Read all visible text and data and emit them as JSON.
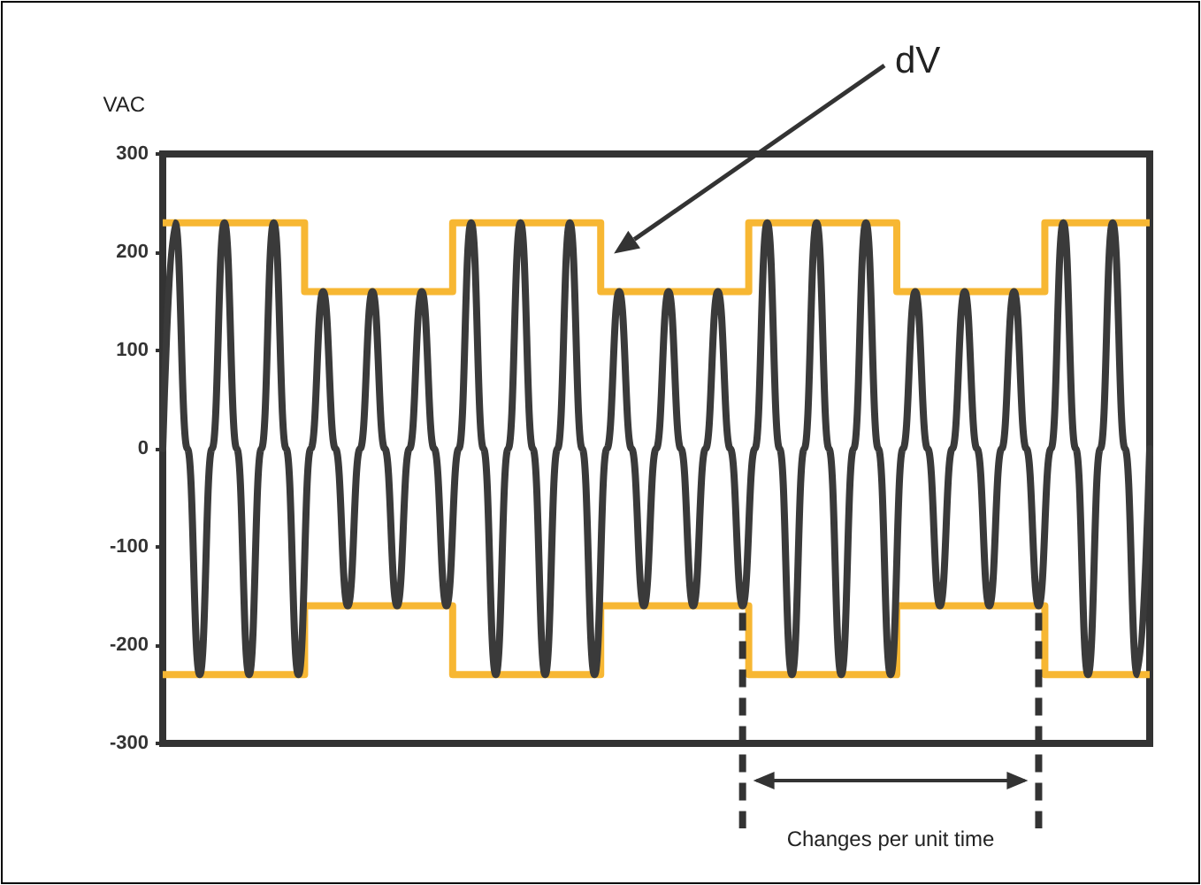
{
  "chart_data": {
    "type": "line",
    "ylabel": "VAC",
    "ylim": [
      -300,
      300
    ],
    "yticks": [
      -300,
      -200,
      -100,
      0,
      100,
      200,
      300
    ],
    "grid": false,
    "marker": "none",
    "annotations": [
      "dV",
      "Changes per unit time"
    ],
    "categories": [
      null,
      null,
      null,
      null,
      null,
      null,
      null,
      null,
      null,
      null,
      null,
      null,
      null,
      null,
      null,
      null,
      null,
      null,
      null,
      null,
      null,
      null,
      null,
      null,
      null,
      null,
      null,
      null,
      null,
      null,
      null,
      null,
      null,
      null,
      null,
      null,
      null,
      null,
      null,
      null,
      null,
      null,
      null,
      null,
      null,
      null,
      null,
      null,
      null,
      null,
      null,
      null,
      null,
      null,
      null,
      null,
      null,
      null,
      null,
      null,
      null,
      null,
      null,
      null,
      null,
      null,
      null,
      null,
      null,
      null,
      null,
      null,
      null,
      null,
      null,
      null,
      null,
      null,
      null,
      null,
      null
    ],
    "series": [
      {
        "color": "#3a3a3a",
        "values": [
          0,
          230,
          0,
          -230,
          0,
          230,
          0,
          -230,
          0,
          230,
          0,
          -230,
          0,
          160,
          0,
          -160,
          0,
          160,
          0,
          -160,
          0,
          160,
          0,
          -160,
          0,
          230,
          0,
          -230,
          0,
          230,
          0,
          -230,
          0,
          230,
          0,
          -230,
          0,
          160,
          0,
          -160,
          0,
          160,
          0,
          -160,
          0,
          160,
          0,
          -160,
          0,
          230,
          0,
          -230,
          0,
          230,
          0,
          -230,
          0,
          230,
          0,
          -230,
          0,
          160,
          0,
          -160,
          0,
          160,
          0,
          -160,
          0,
          160,
          0,
          -160,
          0,
          230,
          0,
          -230,
          0,
          230,
          0,
          -230,
          0
        ]
      },
      {
        "type": "step",
        "color": "#f7b733",
        "values": [
          230,
          230,
          230,
          230,
          230,
          230,
          230,
          230,
          230,
          230,
          230,
          230,
          160,
          160,
          160,
          160,
          160,
          160,
          160,
          160,
          160,
          160,
          160,
          160,
          230,
          230,
          230,
          230,
          230,
          230,
          230,
          230,
          230,
          230,
          230,
          230,
          160,
          160,
          160,
          160,
          160,
          160,
          160,
          160,
          160,
          160,
          160,
          160,
          230,
          230,
          230,
          230,
          230,
          230,
          230,
          230,
          230,
          230,
          230,
          230,
          160,
          160,
          160,
          160,
          160,
          160,
          160,
          160,
          160,
          160,
          160,
          160,
          230,
          230,
          230,
          230,
          230,
          230,
          230,
          230,
          230
        ]
      },
      {
        "type": "step",
        "color": "#f7b733",
        "values": [
          -230,
          -230,
          -230,
          -230,
          -230,
          -230,
          -230,
          -230,
          -230,
          -230,
          -230,
          -230,
          -160,
          -160,
          -160,
          -160,
          -160,
          -160,
          -160,
          -160,
          -160,
          -160,
          -160,
          -160,
          -230,
          -230,
          -230,
          -230,
          -230,
          -230,
          -230,
          -230,
          -230,
          -230,
          -230,
          -230,
          -160,
          -160,
          -160,
          -160,
          -160,
          -160,
          -160,
          -160,
          -160,
          -160,
          -160,
          -160,
          -230,
          -230,
          -230,
          -230,
          -230,
          -230,
          -230,
          -230,
          -230,
          -230,
          -230,
          -230,
          -160,
          -160,
          -160,
          -160,
          -160,
          -160,
          -160,
          -160,
          -160,
          -160,
          -160,
          -160,
          -230,
          -230,
          -230,
          -230,
          -230,
          -230,
          -230,
          -230,
          -230
        ]
      }
    ]
  }
}
